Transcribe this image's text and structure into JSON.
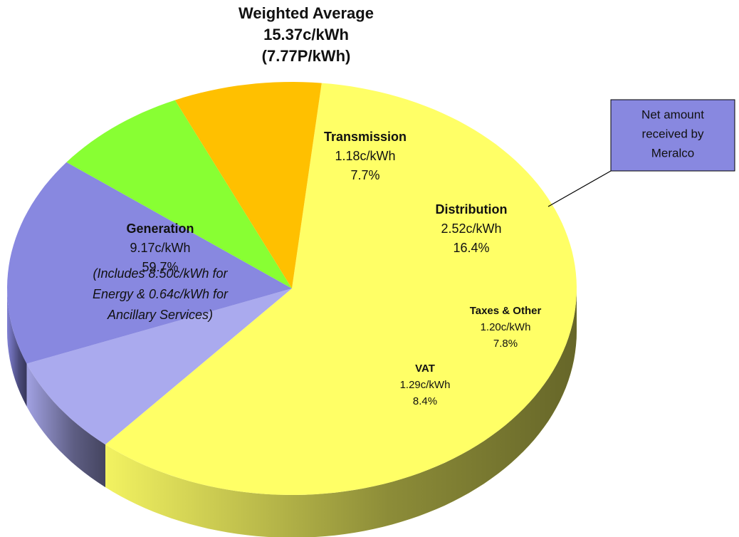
{
  "chart_data": {
    "type": "pie",
    "title": [
      "Weighted Average",
      "15.37c/kWh",
      "(7.77P/kWh)"
    ],
    "categories": [
      "Generation",
      "Transmission",
      "Distribution",
      "Taxes & Other",
      "VAT"
    ],
    "values": [
      59.7,
      7.7,
      16.4,
      7.8,
      8.4
    ],
    "value_labels": [
      "59.7%",
      "7.7%",
      "16.4%",
      "7.8%",
      "8.4%"
    ],
    "amounts": [
      "9.17c/kWh",
      "1.18c/kWh",
      "2.52c/kWh",
      "1.20c/kWh",
      "1.29c/kWh"
    ],
    "colors": [
      "#ffff66",
      "#aaaaee",
      "#8888e0",
      "#88ff33",
      "#ffc000"
    ],
    "annotation": [
      "(Includes  8.50c/kWh for",
      "Energy & 0.64c/kWh for",
      "Ancillary Services)"
    ],
    "callout": [
      "Net amount",
      "received by",
      "Meralco"
    ]
  }
}
